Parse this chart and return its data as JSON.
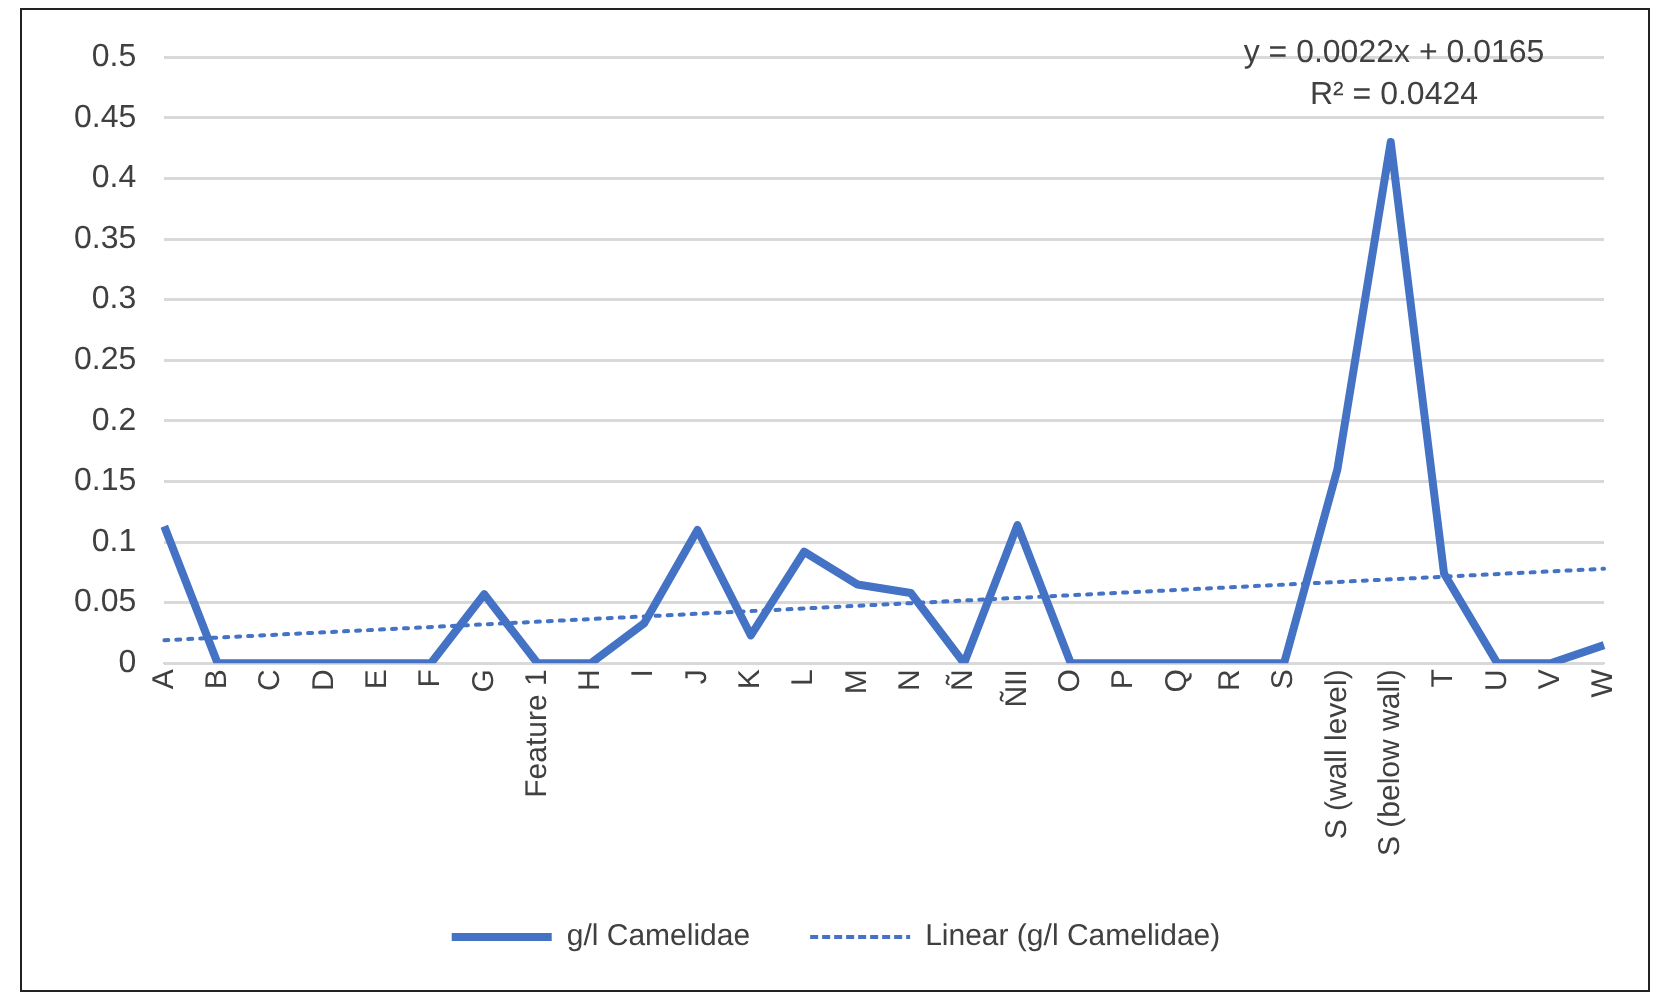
{
  "chart_data": {
    "type": "line",
    "categories": [
      "A",
      "B",
      "C",
      "D",
      "E",
      "F",
      "G",
      "Feature 1",
      "H",
      "I",
      "J",
      "K",
      "L",
      "M",
      "N",
      "Ñ",
      "ÑII",
      "O",
      "P",
      "Q",
      "R",
      "S",
      "S (wall level)",
      "S (below wall)",
      "T",
      "U",
      "V",
      "W"
    ],
    "series": [
      {
        "name": "g/l Camelidae",
        "color": "#4472c4",
        "line_style": "solid",
        "values": [
          0.113,
          0,
          0,
          0,
          0,
          0,
          0.057,
          0,
          0,
          0.033,
          0.11,
          0.023,
          0.092,
          0.065,
          0.058,
          0,
          0.114,
          0,
          0,
          0,
          0,
          0,
          0.16,
          0.43,
          0.074,
          0,
          0,
          0.015
        ]
      },
      {
        "name": "Linear (g/l Camelidae)",
        "type": "line",
        "color": "#4472c4",
        "line_style": "dotted",
        "x": [
          "A",
          "W"
        ],
        "values": [
          0.019,
          0.078
        ]
      }
    ],
    "ylim": [
      0,
      0.5
    ],
    "yticks": [
      0,
      0.05,
      0.1,
      0.15,
      0.2,
      0.25,
      0.3,
      0.35,
      0.4,
      0.45,
      0.5
    ],
    "grid": "y",
    "legend": "bottom",
    "marker": "none",
    "annotations": [
      "y = 0.0022x + 0.0165",
      "R² = 0.0424"
    ]
  }
}
